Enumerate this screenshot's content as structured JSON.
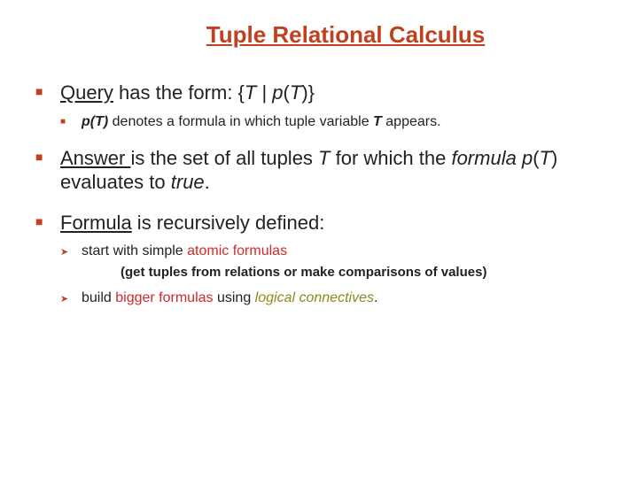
{
  "title": {
    "text": "Tuple Relational Calculus",
    "color": "#c04020",
    "fontsize": 26
  },
  "colors": {
    "bullet": "#c04020",
    "accent_red": "#d02a2a",
    "accent_olive": "#8a8a1a",
    "body_text": "#222222"
  },
  "fontsize": {
    "lvl1": 22,
    "lvl2": 16,
    "lvl2_sm": 15
  },
  "b1": {
    "query_label": "Query",
    "rest": " has the form: {",
    "T": "T",
    "bar": " | ",
    "pT": "p",
    "paren_open": "(",
    "T2": "T",
    "paren_close": ")}",
    "sub": {
      "pT": "p(T)",
      "mid": " denotes a formula in which tuple variable ",
      "T": "T",
      "end": " appears."
    }
  },
  "b2": {
    "answer_label": "Answer ",
    "mid1": " is the set of all tuples ",
    "T": "T",
    "mid2": "  for which the ",
    "formula_word": "formula",
    "space": " ",
    "p": "p",
    "paren_open": "(",
    "T2": "T",
    "paren_close": ")",
    "mid3": " evaluates to ",
    "true_word": "true",
    "period": "."
  },
  "b3": {
    "formula_label": "Formula",
    "rest": " is recursively defined:",
    "s1": {
      "pre": "start with simple ",
      "atomic": "atomic formulas",
      "paren": "(get tuples from relations or make comparisons of values)"
    },
    "s2": {
      "pre": "build ",
      "bigger": "bigger formulas",
      "mid": " using ",
      "logical": "logical connectives",
      "period": "."
    }
  }
}
